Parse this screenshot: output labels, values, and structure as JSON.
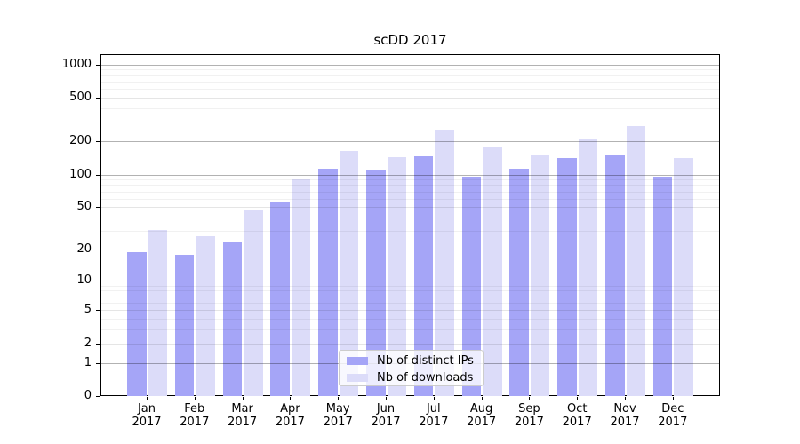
{
  "chart_data": {
    "type": "bar",
    "title": "scDD 2017",
    "year_label": "2017",
    "categories": [
      "Jan",
      "Feb",
      "Mar",
      "Apr",
      "May",
      "Jun",
      "Jul",
      "Aug",
      "Sep",
      "Oct",
      "Nov",
      "Dec"
    ],
    "series": [
      {
        "name": "Nb of distinct IPs",
        "color": "#a5a5f7",
        "values": [
          19,
          18,
          24,
          56,
          112,
          109,
          148,
          95,
          113,
          142,
          152,
          96
        ]
      },
      {
        "name": "Nb of downloads",
        "color": "#dcdcf9",
        "values": [
          31,
          27,
          48,
          91,
          163,
          144,
          255,
          176,
          149,
          212,
          277,
          142
        ]
      }
    ],
    "yscale": "log1p",
    "ylim": [
      0,
      1261
    ],
    "yticks": [
      0,
      1,
      2,
      5,
      10,
      20,
      50,
      100,
      200,
      500,
      1000
    ],
    "emphasized_gridlines": [
      1,
      10,
      100,
      200,
      1000
    ],
    "soft_gridlines": [
      2,
      5,
      20,
      50,
      500
    ],
    "minor_gridlines": [
      3,
      4,
      6,
      7,
      8,
      9,
      30,
      40,
      60,
      70,
      80,
      90,
      300,
      400,
      600,
      700,
      800,
      900
    ],
    "grid": true,
    "legend_position": "lower center",
    "frame_color": "#000000",
    "grid_major_color": "#b3b3b3",
    "grid_minor_color": "#ededed"
  }
}
